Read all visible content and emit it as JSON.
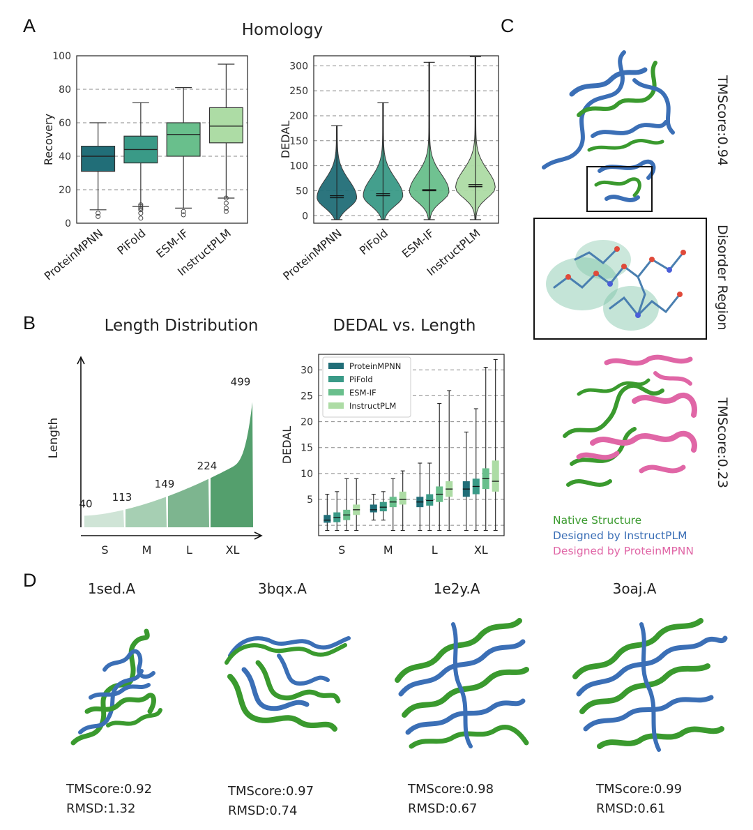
{
  "panel_labels": [
    "A",
    "B",
    "C",
    "D"
  ],
  "panel_a": {
    "title": "Homology",
    "categories": [
      "ProteinMPNN",
      "PiFold",
      "ESM-IF",
      "InstructPLM"
    ],
    "colors": [
      "#216e78",
      "#3a9a87",
      "#69bf8c",
      "#addca5"
    ]
  },
  "panel_b": {
    "length_title": "Length Distribution",
    "length_axis_label": "Length",
    "dedal_title": "DEDAL vs. Length",
    "length_groups": [
      "S",
      "M",
      "L",
      "XL"
    ],
    "length_group_colors": [
      "#cfe4d6",
      "#a6cfb3",
      "#7db58f",
      "#549f6d"
    ]
  },
  "panel_c": {
    "score_top": "TMScore:0.94",
    "region_label": "Disorder Region",
    "score_bottom": "TMScore:0.23",
    "legend": [
      {
        "label": "Native Structure",
        "color": "#3a9a2e"
      },
      {
        "label": "Designed by InstructPLM",
        "color": "#3b6fb6"
      },
      {
        "label": "Designed by ProteinMPNN",
        "color": "#e066a6"
      }
    ]
  },
  "panel_d": {
    "structures": [
      {
        "name": "1sed.A",
        "tmscore": "TMScore:0.92",
        "rmsd": "RMSD:1.32"
      },
      {
        "name": "3bqx.A",
        "tmscore": "TMScore:0.97",
        "rmsd": "RMSD:0.74"
      },
      {
        "name": "1e2y.A",
        "tmscore": "TMScore:0.98",
        "rmsd": "RMSD:0.67"
      },
      {
        "name": "3oaj.A",
        "tmscore": "TMScore:0.99",
        "rmsd": "RMSD:0.61"
      }
    ]
  },
  "chart_data": [
    {
      "type": "box",
      "ylabel": "Recovery",
      "ylim": [
        0,
        100
      ],
      "yticks": [
        0,
        20,
        40,
        60,
        80,
        100
      ],
      "categories": [
        "ProteinMPNN",
        "PiFold",
        "ESM-IF",
        "InstructPLM"
      ],
      "boxes": [
        {
          "min": 8,
          "q1": 31,
          "median": 40,
          "q3": 46,
          "max": 60,
          "outliers": [
            4,
            6
          ]
        },
        {
          "min": 10,
          "q1": 36,
          "median": 44,
          "q3": 52,
          "max": 72,
          "outliers": [
            3,
            6,
            8,
            9,
            10,
            11
          ]
        },
        {
          "min": 9,
          "q1": 40,
          "median": 53,
          "q3": 60,
          "max": 81,
          "outliers": [
            5,
            7
          ]
        },
        {
          "min": 15,
          "q1": 48,
          "median": 58,
          "q3": 69,
          "max": 95,
          "outliers": [
            7,
            9,
            12,
            15
          ]
        }
      ],
      "grid": true
    },
    {
      "type": "violin",
      "ylabel": "DEDAL",
      "ylim": [
        -15,
        320
      ],
      "yticks": [
        0,
        50,
        100,
        150,
        200,
        250,
        300
      ],
      "categories": [
        "ProteinMPNN",
        "PiFold",
        "ESM-IF",
        "InstructPLM"
      ],
      "violins": [
        {
          "min": -8,
          "max": 180,
          "mean": 40,
          "median": 36,
          "mode": 36
        },
        {
          "min": -8,
          "max": 226,
          "mean": 44,
          "median": 40,
          "mode": 40
        },
        {
          "min": -8,
          "max": 307,
          "mean": 52,
          "median": 50,
          "mode": 48
        },
        {
          "min": -8,
          "max": 318,
          "mean": 62,
          "median": 58,
          "mode": 56
        }
      ],
      "grid": true
    },
    {
      "type": "area",
      "ylabel": "Length",
      "x_groups": [
        "S",
        "M",
        "L",
        "XL"
      ],
      "annotations": [
        40,
        113,
        149,
        224,
        499
      ]
    },
    {
      "type": "box",
      "ylabel": "DEDAL",
      "ylim": [
        -2,
        33
      ],
      "yticks": [
        5,
        10,
        15,
        20,
        25,
        30
      ],
      "categories": [
        "S",
        "M",
        "L",
        "XL"
      ],
      "legend": [
        "ProteinMPNN",
        "PiFold",
        "ESM-IF",
        "InstructPLM"
      ],
      "legend_position": "top-left",
      "series": [
        {
          "name": "ProteinMPNN",
          "boxes": [
            {
              "min": -1,
              "q1": 0.5,
              "median": 1,
              "q3": 2,
              "max": 6
            },
            {
              "min": 1,
              "q1": 2.5,
              "median": 3,
              "q3": 4,
              "max": 6
            },
            {
              "min": -1,
              "q1": 3.5,
              "median": 4.5,
              "q3": 5.5,
              "max": 12
            },
            {
              "min": -1,
              "q1": 5.5,
              "median": 7,
              "q3": 8.5,
              "max": 18
            }
          ]
        },
        {
          "name": "PiFold",
          "boxes": [
            {
              "min": -1,
              "q1": 0.6,
              "median": 1.5,
              "q3": 2.5,
              "max": 6.5
            },
            {
              "min": 1,
              "q1": 2.7,
              "median": 3.5,
              "q3": 4.5,
              "max": 6.5
            },
            {
              "min": -1,
              "q1": 3.8,
              "median": 4.8,
              "q3": 6,
              "max": 12
            },
            {
              "min": -1,
              "q1": 6,
              "median": 7.5,
              "q3": 9,
              "max": 22.5
            }
          ]
        },
        {
          "name": "ESM-IF",
          "boxes": [
            {
              "min": -1,
              "q1": 1,
              "median": 2,
              "q3": 3,
              "max": 9
            },
            {
              "min": -1,
              "q1": 3.5,
              "median": 4.5,
              "q3": 5.5,
              "max": 9
            },
            {
              "min": -1,
              "q1": 4.5,
              "median": 6,
              "q3": 7.5,
              "max": 23.5
            },
            {
              "min": -1,
              "q1": 7,
              "median": 9,
              "q3": 11,
              "max": 30.5
            }
          ]
        },
        {
          "name": "InstructPLM",
          "boxes": [
            {
              "min": -1,
              "q1": 2,
              "median": 3,
              "q3": 4,
              "max": 9
            },
            {
              "min": -1,
              "q1": 4,
              "median": 5,
              "q3": 6.5,
              "max": 10.5
            },
            {
              "min": -1,
              "q1": 5.5,
              "median": 7,
              "q3": 8.5,
              "max": 26
            },
            {
              "min": -1,
              "q1": 6.5,
              "median": 8.5,
              "q3": 12.5,
              "max": 32
            }
          ]
        }
      ],
      "grid": true
    }
  ]
}
